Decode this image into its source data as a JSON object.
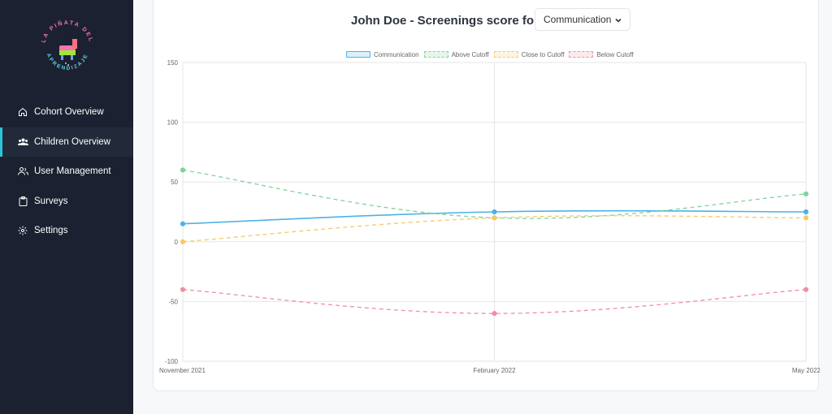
{
  "sidebar": {
    "logo_text_top": "LA PIÑATA DEL",
    "logo_text_bottom": "APRENDIZAJE",
    "items": [
      {
        "label": "Cohort Overview",
        "icon": "home-icon"
      },
      {
        "label": "Children Overview",
        "icon": "users-icon",
        "active": true
      },
      {
        "label": "User Management",
        "icon": "user-group-icon"
      },
      {
        "label": "Surveys",
        "icon": "clipboard-icon"
      },
      {
        "label": "Settings",
        "icon": "gear-icon"
      }
    ],
    "accent_color": "#2ec4d8"
  },
  "header": {
    "title": "John Doe - Screenings score for",
    "selected_domain": "Communication"
  },
  "chart_data": {
    "type": "line",
    "categories": [
      "November 2021",
      "February 2022",
      "May 2022"
    ],
    "ylim": [
      -100,
      150
    ],
    "yticks": [
      150,
      100,
      50,
      0,
      -50,
      -100
    ],
    "grid": true,
    "legend_position": "top",
    "series": [
      {
        "name": "Communication",
        "values": [
          15,
          25,
          25
        ],
        "color": "#4db3e6",
        "dashed": false
      },
      {
        "name": "Above Cutoff",
        "values": [
          60,
          20,
          40
        ],
        "color": "#7fd39a",
        "dashed": true
      },
      {
        "name": "Close to Cutoff",
        "values": [
          0,
          20,
          20
        ],
        "color": "#f5c96b",
        "dashed": true
      },
      {
        "name": "Below Cutoff",
        "values": [
          -40,
          -60,
          -40
        ],
        "color": "#ef8fa0",
        "dashed": true
      }
    ]
  }
}
